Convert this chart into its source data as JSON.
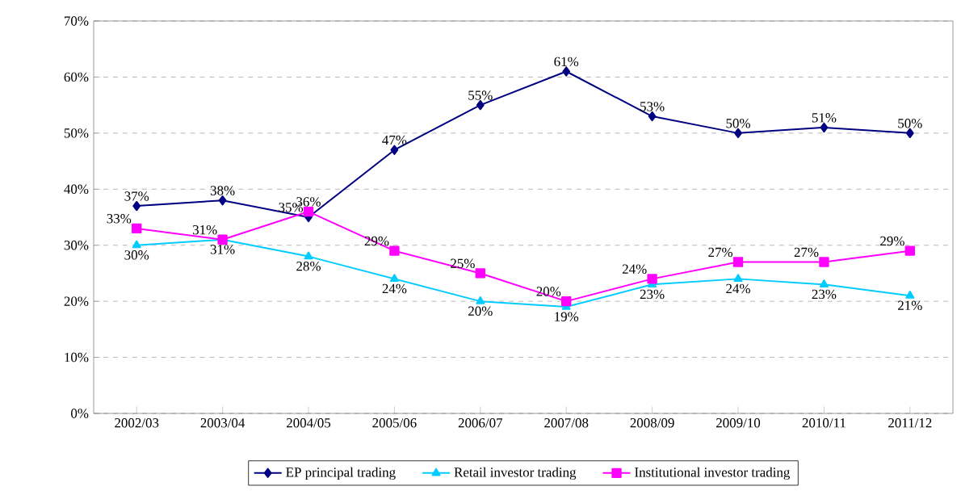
{
  "chart_data": {
    "type": "line",
    "categories": [
      "2002/03",
      "2003/04",
      "2004/05",
      "2005/06",
      "2006/07",
      "2007/08",
      "2008/09",
      "2009/10",
      "2010/11",
      "2011/12"
    ],
    "series": [
      {
        "name": "EP principal trading",
        "color": "#000080",
        "marker": "diamond",
        "values": [
          37,
          38,
          35,
          47,
          55,
          61,
          53,
          50,
          51,
          50
        ],
        "value_labels": [
          "37%",
          "38%",
          "35%",
          "47%",
          "55%",
          "61%",
          "53%",
          "50%",
          "51%",
          "50%"
        ]
      },
      {
        "name": "Retail investor trading",
        "color": "#00ccff",
        "marker": "triangle",
        "values": [
          30,
          31,
          28,
          24,
          20,
          19,
          23,
          24,
          23,
          21
        ],
        "value_labels": [
          "30%",
          "31%",
          "28%",
          "24%",
          "20%",
          "19%",
          "23%",
          "24%",
          "23%",
          "21%"
        ]
      },
      {
        "name": "Institutional investor trading",
        "color": "#ff00ff",
        "marker": "square",
        "values": [
          33,
          31,
          36,
          29,
          25,
          20,
          24,
          27,
          27,
          29
        ],
        "value_labels": [
          "33%",
          "31%",
          "36%",
          "29%",
          "25%",
          "20%",
          "24%",
          "27%",
          "27%",
          "29%"
        ]
      }
    ],
    "ylim": [
      0,
      70
    ],
    "yticks": [
      {
        "value": 0,
        "label": "0%"
      },
      {
        "value": 10,
        "label": "10%"
      },
      {
        "value": 20,
        "label": "20%"
      },
      {
        "value": 30,
        "label": "30%"
      },
      {
        "value": 40,
        "label": "40%"
      },
      {
        "value": 50,
        "label": "50%"
      },
      {
        "value": 60,
        "label": "60%"
      },
      {
        "value": 70,
        "label": "70%"
      }
    ],
    "grid": "y",
    "legend": "bottom",
    "line_style": "solid"
  }
}
